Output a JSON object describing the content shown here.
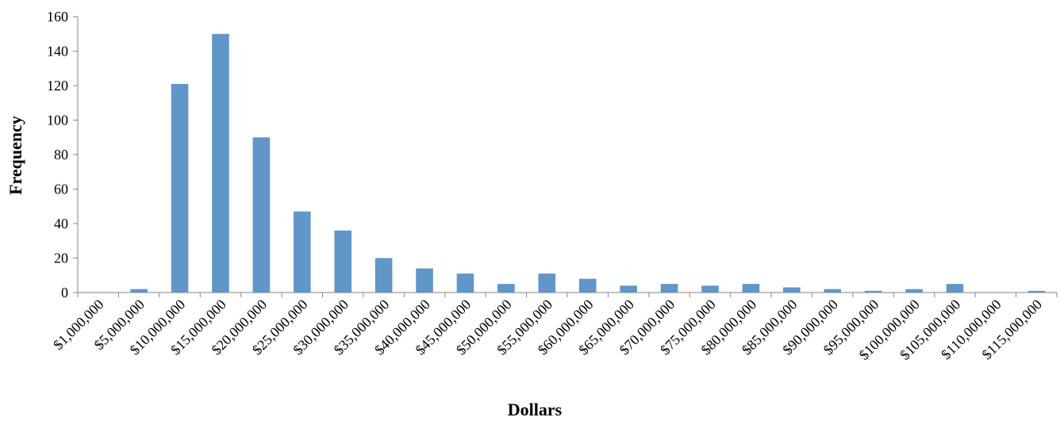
{
  "chart_data": {
    "type": "bar",
    "title": "",
    "xlabel": "Dollars",
    "ylabel": "Frequency",
    "ylim": [
      0,
      160
    ],
    "yticks": [
      0,
      20,
      40,
      60,
      80,
      100,
      120,
      140,
      160
    ],
    "grid": false,
    "legend": "none",
    "categories": [
      "$1,000,000",
      "$5,000,000",
      "$10,000,000",
      "$15,000,000",
      "$20,000,000",
      "$25,000,000",
      "$30,000,000",
      "$35,000,000",
      "$40,000,000",
      "$45,000,000",
      "$50,000,000",
      "$55,000,000",
      "$60,000,000",
      "$65,000,000",
      "$70,000,000",
      "$75,000,000",
      "$80,000,000",
      "$85,000,000",
      "$90,000,000",
      "$95,000,000",
      "$100,000,000",
      "$105,000,000",
      "$110,000,000",
      "$115,000,000"
    ],
    "series": [
      {
        "values": [
          0,
          2,
          121,
          150,
          90,
          47,
          36,
          20,
          14,
          11,
          5,
          11,
          8,
          4,
          5,
          4,
          5,
          3,
          2,
          1,
          2,
          5,
          0,
          1
        ],
        "color": "#6196c9"
      }
    ]
  }
}
